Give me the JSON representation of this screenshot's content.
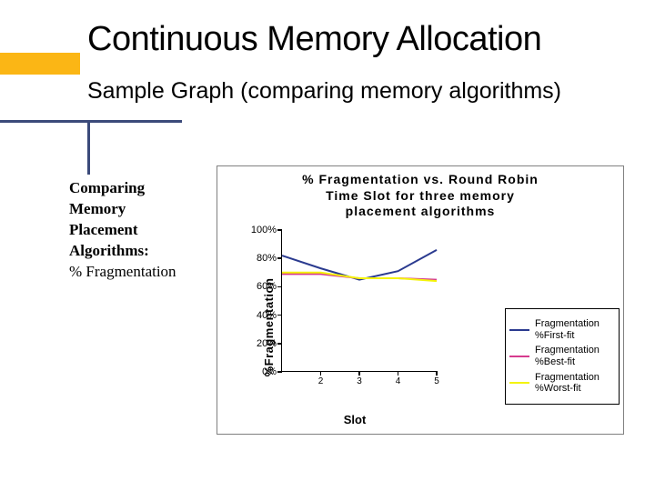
{
  "slide": {
    "title": "Continuous Memory Allocation",
    "subtitle": "Sample Graph (comparing memory algorithms)",
    "accent_block_color": "#fbb615",
    "accent_line_color": "#3b4a7a"
  },
  "sidebar": {
    "line1": "Comparing",
    "line2": "Memory",
    "line3": "Placement",
    "line4": "Algorithms:",
    "line5": "% Fragmentation",
    "font_family": "Georgia, Times New Roman, serif",
    "fontsize": 17
  },
  "chart": {
    "type": "line",
    "title_line1": "% Fragmentation vs. Round Robin",
    "title_line2": "Time Slot for three memory",
    "title_line3": "placement algorithms",
    "title_fontsize": 14,
    "border_color": "#808080",
    "background_color": "#ffffff",
    "y_axis": {
      "label": "%Fragmentation",
      "label_fontsize": 13,
      "ylim": [
        0,
        100
      ],
      "ticks": [
        0,
        20,
        40,
        60,
        80,
        100
      ],
      "tick_labels": [
        "0%",
        "20%",
        "40%",
        "60%",
        "80%",
        "100%"
      ],
      "tick_fontsize": 11
    },
    "x_axis": {
      "label": "Slot",
      "label_fontsize": 13,
      "xlim": [
        1,
        5
      ],
      "ticks": [
        2,
        3,
        4,
        5
      ],
      "tick_fontsize": 10
    },
    "series": [
      {
        "name": "Fragmentation %First-fit",
        "color": "#2a3a8f",
        "line_width": 2,
        "x": [
          1,
          2,
          3,
          4,
          5
        ],
        "y": [
          82,
          73,
          65,
          71,
          86
        ]
      },
      {
        "name": "Fragmentation %Best-fit",
        "color": "#d63b8e",
        "line_width": 2,
        "x": [
          1,
          2,
          3,
          4,
          5
        ],
        "y": [
          69,
          69,
          66,
          66,
          65
        ]
      },
      {
        "name": "Fragmentation %Worst-fit",
        "color": "#f4f40a",
        "line_width": 2,
        "x": [
          1,
          2,
          3,
          4,
          5
        ],
        "y": [
          70,
          70,
          66,
          66,
          64
        ]
      }
    ],
    "legend": {
      "position": "right",
      "border_color": "#000000",
      "fontsize": 11
    }
  }
}
